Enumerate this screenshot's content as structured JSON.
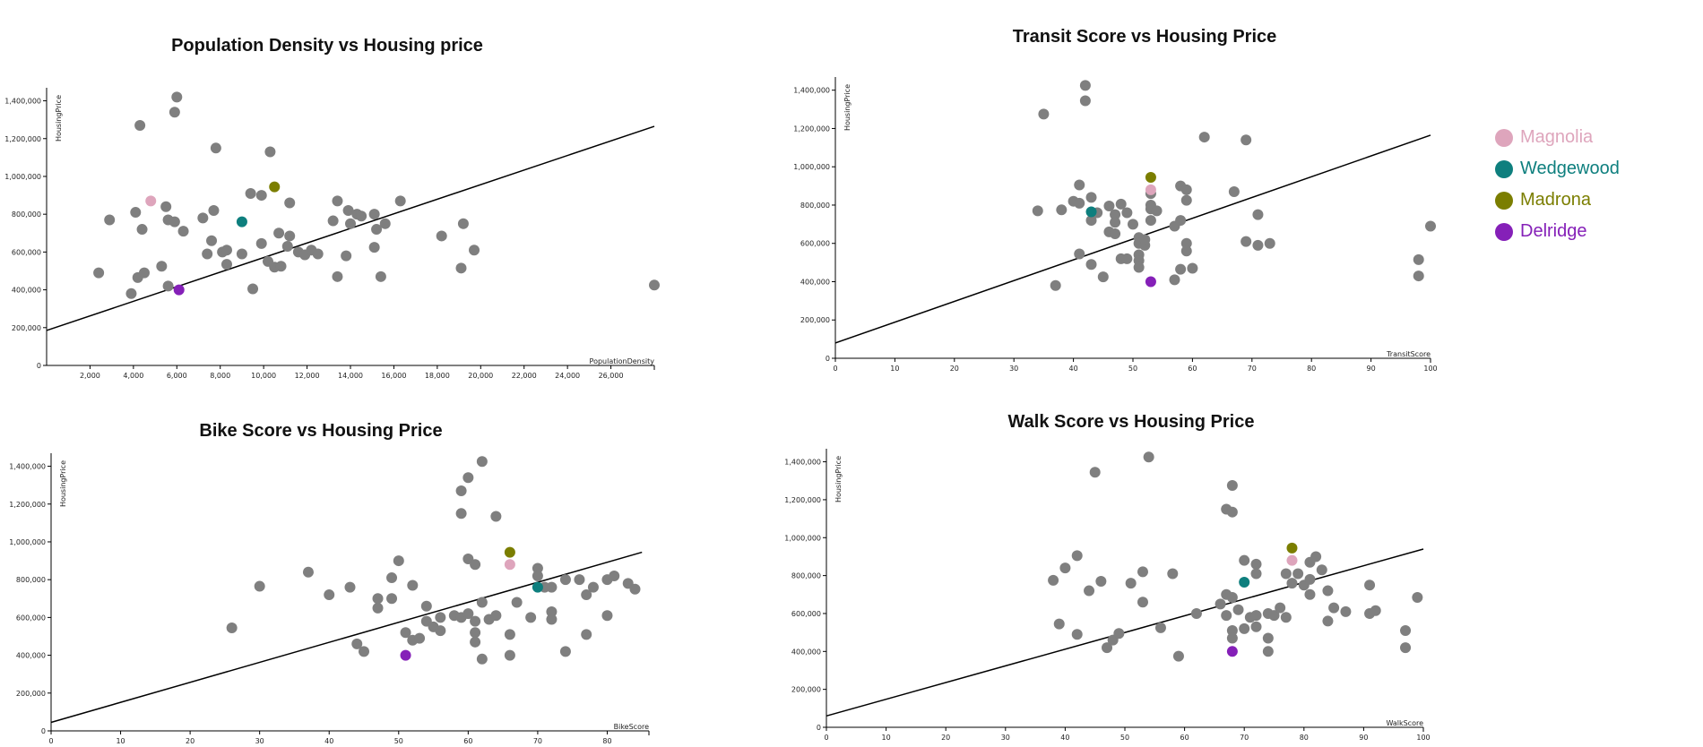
{
  "legend": {
    "items": [
      {
        "label": "Magnolia",
        "color": "#dea5bc"
      },
      {
        "label": "Wedgewood",
        "color": "#0e7f7e"
      },
      {
        "label": "Madrona",
        "color": "#7b7e00"
      },
      {
        "label": "Delridge",
        "color": "#8520b8"
      }
    ]
  },
  "chart_data": [
    {
      "type": "scatter",
      "title": "Population Density vs Housing price",
      "xlabel": "PopulationDensity",
      "ylabel": "HousingPrice",
      "xlim": [
        0,
        28000
      ],
      "ylim": [
        0,
        1450000
      ],
      "xticks": [
        2000,
        4000,
        6000,
        8000,
        10000,
        12000,
        14000,
        16000,
        18000,
        20000,
        22000,
        24000,
        26000
      ],
      "xtick_labels": [
        "2,000",
        "4,000",
        "6,000",
        "8,000",
        "10,000",
        "12,000",
        "14,000",
        "16,000",
        "18,000",
        "20,000",
        "22,000",
        "24,000",
        "26,000"
      ],
      "yticks": [
        0,
        200000,
        400000,
        600000,
        800000,
        1000000,
        1200000,
        1400000
      ],
      "ytick_labels": [
        "0",
        "200,000",
        "400,000",
        "600,000",
        "800,000",
        "1,000,000",
        "1,200,000",
        "1,400,000"
      ],
      "trendline": [
        [
          0,
          185000
        ],
        [
          28000,
          1265000
        ]
      ],
      "highlight": [
        {
          "neighborhood": "Magnolia",
          "x": 4800,
          "y": 870000
        },
        {
          "neighborhood": "Wedgewood",
          "x": 9000,
          "y": 760000
        },
        {
          "neighborhood": "Madrona",
          "x": 10500,
          "y": 945000
        },
        {
          "neighborhood": "Delridge",
          "x": 6100,
          "y": 400000
        }
      ],
      "points": [
        [
          2400,
          490000
        ],
        [
          2900,
          770000
        ],
        [
          3900,
          380000
        ],
        [
          4100,
          810000
        ],
        [
          4200,
          465000
        ],
        [
          4300,
          1270000
        ],
        [
          4400,
          720000
        ],
        [
          4500,
          490000
        ],
        [
          5300,
          525000
        ],
        [
          5500,
          840000
        ],
        [
          5600,
          770000
        ],
        [
          5600,
          420000
        ],
        [
          5900,
          760000
        ],
        [
          5900,
          1340000
        ],
        [
          6000,
          1420000
        ],
        [
          6300,
          710000
        ],
        [
          7200,
          780000
        ],
        [
          7400,
          590000
        ],
        [
          7600,
          660000
        ],
        [
          7700,
          820000
        ],
        [
          7800,
          1150000
        ],
        [
          8100,
          600000
        ],
        [
          8300,
          535000
        ],
        [
          8300,
          610000
        ],
        [
          9000,
          590000
        ],
        [
          9400,
          910000
        ],
        [
          9500,
          405000
        ],
        [
          9900,
          900000
        ],
        [
          9900,
          645000
        ],
        [
          10200,
          550000
        ],
        [
          10300,
          1130000
        ],
        [
          10500,
          520000
        ],
        [
          10700,
          700000
        ],
        [
          10800,
          525000
        ],
        [
          11100,
          630000
        ],
        [
          11200,
          685000
        ],
        [
          11200,
          860000
        ],
        [
          11600,
          600000
        ],
        [
          11900,
          585000
        ],
        [
          12200,
          610000
        ],
        [
          12500,
          590000
        ],
        [
          13200,
          765000
        ],
        [
          13400,
          870000
        ],
        [
          13400,
          470000
        ],
        [
          13800,
          580000
        ],
        [
          13900,
          820000
        ],
        [
          14000,
          750000
        ],
        [
          14300,
          800000
        ],
        [
          14500,
          790000
        ],
        [
          15100,
          625000
        ],
        [
          15100,
          800000
        ],
        [
          15200,
          720000
        ],
        [
          15400,
          470000
        ],
        [
          15600,
          750000
        ],
        [
          16300,
          870000
        ],
        [
          18200,
          685000
        ],
        [
          19100,
          515000
        ],
        [
          19200,
          750000
        ],
        [
          19700,
          610000
        ],
        [
          28000,
          425000
        ]
      ]
    },
    {
      "type": "scatter",
      "title": "Transit Score vs Housing Price",
      "xlabel": "TransitScore",
      "ylabel": "HousingPrice",
      "xlim": [
        0,
        100
      ],
      "ylim": [
        0,
        1450000
      ],
      "xticks": [
        0,
        10,
        20,
        30,
        40,
        50,
        60,
        70,
        80,
        90,
        100
      ],
      "xtick_labels": [
        "0",
        "10",
        "20",
        "30",
        "40",
        "50",
        "60",
        "70",
        "80",
        "90",
        "100"
      ],
      "yticks": [
        0,
        200000,
        400000,
        600000,
        800000,
        1000000,
        1200000,
        1400000
      ],
      "ytick_labels": [
        "0",
        "200,000",
        "400,000",
        "600,000",
        "800,000",
        "1,000,000",
        "1,200,000",
        "1,400,000"
      ],
      "trendline": [
        [
          0,
          80000
        ],
        [
          100,
          1165000
        ]
      ],
      "highlight": [
        {
          "neighborhood": "Magnolia",
          "x": 53,
          "y": 880000
        },
        {
          "neighborhood": "Wedgewood",
          "x": 43,
          "y": 765000
        },
        {
          "neighborhood": "Madrona",
          "x": 53,
          "y": 945000
        },
        {
          "neighborhood": "Delridge",
          "x": 53,
          "y": 400000
        }
      ],
      "points": [
        [
          34,
          770000
        ],
        [
          35,
          1275000
        ],
        [
          37,
          380000
        ],
        [
          38,
          775000
        ],
        [
          40,
          820000
        ],
        [
          41,
          905000
        ],
        [
          41,
          545000
        ],
        [
          41,
          810000
        ],
        [
          42,
          1425000
        ],
        [
          42,
          1345000
        ],
        [
          43,
          840000
        ],
        [
          43,
          720000
        ],
        [
          43,
          490000
        ],
        [
          44,
          760000
        ],
        [
          45,
          425000
        ],
        [
          46,
          795000
        ],
        [
          46,
          660000
        ],
        [
          47,
          750000
        ],
        [
          47,
          650000
        ],
        [
          47,
          710000
        ],
        [
          48,
          520000
        ],
        [
          48,
          805000
        ],
        [
          49,
          520000
        ],
        [
          49,
          760000
        ],
        [
          50,
          700000
        ],
        [
          51,
          630000
        ],
        [
          51,
          540000
        ],
        [
          51,
          510000
        ],
        [
          51,
          475000
        ],
        [
          51,
          600000
        ],
        [
          52,
          590000
        ],
        [
          52,
          620000
        ],
        [
          53,
          860000
        ],
        [
          53,
          800000
        ],
        [
          53,
          780000
        ],
        [
          53,
          720000
        ],
        [
          54,
          770000
        ],
        [
          57,
          410000
        ],
        [
          57,
          690000
        ],
        [
          58,
          900000
        ],
        [
          58,
          465000
        ],
        [
          58,
          720000
        ],
        [
          59,
          880000
        ],
        [
          59,
          825000
        ],
        [
          59,
          600000
        ],
        [
          59,
          560000
        ],
        [
          60,
          470000
        ],
        [
          62,
          1155000
        ],
        [
          67,
          870000
        ],
        [
          69,
          1140000
        ],
        [
          69,
          610000
        ],
        [
          71,
          750000
        ],
        [
          71,
          590000
        ],
        [
          73,
          600000
        ],
        [
          98,
          515000
        ],
        [
          98,
          430000
        ],
        [
          100,
          690000
        ]
      ]
    },
    {
      "type": "scatter",
      "title": "Bike Score vs Housing Price",
      "xlabel": "BikeScore",
      "ylabel": "HousingPrice",
      "xlim": [
        0,
        86
      ],
      "ylim": [
        0,
        1450000
      ],
      "xticks": [
        0,
        10,
        20,
        30,
        40,
        50,
        60,
        70,
        80
      ],
      "xtick_labels": [
        "0",
        "10",
        "20",
        "30",
        "40",
        "50",
        "60",
        "70",
        "80"
      ],
      "yticks": [
        0,
        200000,
        400000,
        600000,
        800000,
        1000000,
        1200000,
        1400000
      ],
      "ytick_labels": [
        "0",
        "200,000",
        "400,000",
        "600,000",
        "800,000",
        "1,000,000",
        "1,200,000",
        "1,400,000"
      ],
      "trendline": [
        [
          0,
          45000
        ],
        [
          85,
          945000
        ]
      ],
      "highlight": [
        {
          "neighborhood": "Magnolia",
          "x": 66,
          "y": 880000
        },
        {
          "neighborhood": "Wedgewood",
          "x": 70,
          "y": 760000
        },
        {
          "neighborhood": "Madrona",
          "x": 66,
          "y": 945000
        },
        {
          "neighborhood": "Delridge",
          "x": 51,
          "y": 400000
        }
      ],
      "points": [
        [
          26,
          545000
        ],
        [
          30,
          765000
        ],
        [
          37,
          840000
        ],
        [
          40,
          720000
        ],
        [
          43,
          760000
        ],
        [
          44,
          460000
        ],
        [
          45,
          420000
        ],
        [
          47,
          700000
        ],
        [
          47,
          650000
        ],
        [
          49,
          810000
        ],
        [
          49,
          700000
        ],
        [
          50,
          900000
        ],
        [
          51,
          520000
        ],
        [
          52,
          480000
        ],
        [
          52,
          770000
        ],
        [
          53,
          490000
        ],
        [
          54,
          660000
        ],
        [
          54,
          580000
        ],
        [
          55,
          550000
        ],
        [
          56,
          530000
        ],
        [
          56,
          600000
        ],
        [
          58,
          610000
        ],
        [
          59,
          1270000
        ],
        [
          59,
          1150000
        ],
        [
          59,
          600000
        ],
        [
          60,
          1340000
        ],
        [
          60,
          910000
        ],
        [
          60,
          620000
        ],
        [
          61,
          880000
        ],
        [
          61,
          580000
        ],
        [
          61,
          520000
        ],
        [
          61,
          470000
        ],
        [
          62,
          1425000
        ],
        [
          62,
          380000
        ],
        [
          62,
          680000
        ],
        [
          63,
          590000
        ],
        [
          64,
          1135000
        ],
        [
          64,
          610000
        ],
        [
          66,
          510000
        ],
        [
          66,
          400000
        ],
        [
          67,
          680000
        ],
        [
          69,
          600000
        ],
        [
          70,
          860000
        ],
        [
          70,
          820000
        ],
        [
          71,
          760000
        ],
        [
          72,
          760000
        ],
        [
          72,
          630000
        ],
        [
          72,
          590000
        ],
        [
          74,
          800000
        ],
        [
          74,
          420000
        ],
        [
          76,
          800000
        ],
        [
          77,
          720000
        ],
        [
          77,
          510000
        ],
        [
          78,
          760000
        ],
        [
          80,
          800000
        ],
        [
          80,
          610000
        ],
        [
          81,
          820000
        ],
        [
          83,
          780000
        ],
        [
          84,
          750000
        ]
      ]
    },
    {
      "type": "scatter",
      "title": "Walk Score vs Housing Price",
      "xlabel": "WalkScore",
      "ylabel": "HousingPrice",
      "xlim": [
        0,
        100
      ],
      "ylim": [
        0,
        1450000
      ],
      "xticks": [
        0,
        10,
        20,
        30,
        40,
        50,
        60,
        70,
        80,
        90,
        100
      ],
      "xtick_labels": [
        "0",
        "10",
        "20",
        "30",
        "40",
        "50",
        "60",
        "70",
        "80",
        "90",
        "100"
      ],
      "yticks": [
        0,
        200000,
        400000,
        600000,
        800000,
        1000000,
        1200000,
        1400000
      ],
      "ytick_labels": [
        "0",
        "200,000",
        "400,000",
        "600,000",
        "800,000",
        "1,000,000",
        "1,200,000",
        "1,400,000"
      ],
      "trendline": [
        [
          0,
          60000
        ],
        [
          100,
          940000
        ]
      ],
      "highlight": [
        {
          "neighborhood": "Magnolia",
          "x": 78,
          "y": 880000
        },
        {
          "neighborhood": "Wedgewood",
          "x": 70,
          "y": 765000
        },
        {
          "neighborhood": "Madrona",
          "x": 78,
          "y": 945000
        },
        {
          "neighborhood": "Delridge",
          "x": 68,
          "y": 400000
        }
      ],
      "points": [
        [
          38,
          775000
        ],
        [
          39,
          545000
        ],
        [
          40,
          840000
        ],
        [
          42,
          905000
        ],
        [
          42,
          490000
        ],
        [
          44,
          720000
        ],
        [
          45,
          1345000
        ],
        [
          46,
          770000
        ],
        [
          47,
          420000
        ],
        [
          48,
          460000
        ],
        [
          49,
          495000
        ],
        [
          51,
          760000
        ],
        [
          53,
          820000
        ],
        [
          53,
          660000
        ],
        [
          54,
          1425000
        ],
        [
          56,
          525000
        ],
        [
          58,
          810000
        ],
        [
          59,
          375000
        ],
        [
          62,
          600000
        ],
        [
          66,
          650000
        ],
        [
          67,
          700000
        ],
        [
          67,
          1150000
        ],
        [
          67,
          590000
        ],
        [
          68,
          1275000
        ],
        [
          68,
          1135000
        ],
        [
          68,
          685000
        ],
        [
          68,
          510000
        ],
        [
          68,
          470000
        ],
        [
          69,
          620000
        ],
        [
          70,
          880000
        ],
        [
          70,
          520000
        ],
        [
          71,
          580000
        ],
        [
          72,
          860000
        ],
        [
          72,
          810000
        ],
        [
          72,
          590000
        ],
        [
          72,
          530000
        ],
        [
          74,
          600000
        ],
        [
          74,
          400000
        ],
        [
          74,
          470000
        ],
        [
          75,
          590000
        ],
        [
          76,
          630000
        ],
        [
          77,
          580000
        ],
        [
          77,
          810000
        ],
        [
          78,
          760000
        ],
        [
          79,
          810000
        ],
        [
          80,
          750000
        ],
        [
          81,
          870000
        ],
        [
          81,
          780000
        ],
        [
          81,
          700000
        ],
        [
          82,
          900000
        ],
        [
          83,
          830000
        ],
        [
          84,
          720000
        ],
        [
          84,
          560000
        ],
        [
          85,
          630000
        ],
        [
          87,
          610000
        ],
        [
          91,
          750000
        ],
        [
          91,
          600000
        ],
        [
          92,
          615000
        ],
        [
          97,
          510000
        ],
        [
          97,
          420000
        ],
        [
          99,
          685000
        ]
      ]
    }
  ]
}
